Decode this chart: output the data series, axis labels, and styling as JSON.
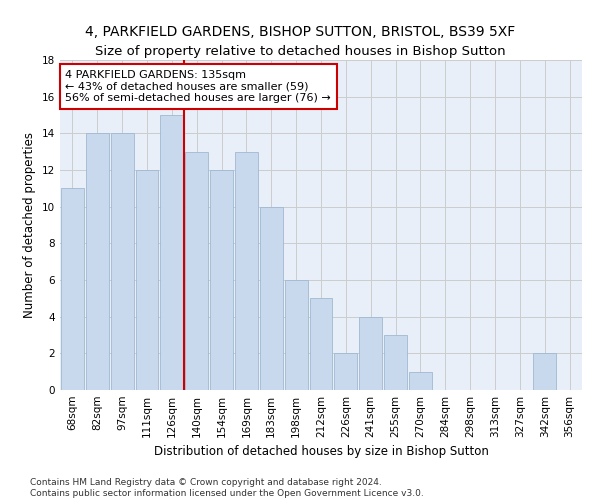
{
  "title": "4, PARKFIELD GARDENS, BISHOP SUTTON, BRISTOL, BS39 5XF",
  "subtitle": "Size of property relative to detached houses in Bishop Sutton",
  "xlabel": "Distribution of detached houses by size in Bishop Sutton",
  "ylabel": "Number of detached properties",
  "categories": [
    "68sqm",
    "82sqm",
    "97sqm",
    "111sqm",
    "126sqm",
    "140sqm",
    "154sqm",
    "169sqm",
    "183sqm",
    "198sqm",
    "212sqm",
    "226sqm",
    "241sqm",
    "255sqm",
    "270sqm",
    "284sqm",
    "298sqm",
    "313sqm",
    "327sqm",
    "342sqm",
    "356sqm"
  ],
  "values": [
    11,
    14,
    14,
    12,
    15,
    13,
    12,
    13,
    10,
    6,
    5,
    2,
    4,
    3,
    1,
    0,
    0,
    0,
    0,
    2,
    0
  ],
  "bar_color": "#c8d9ed",
  "bar_edge_color": "#a0b8d0",
  "ref_line_x": 4.5,
  "ref_line_label": "4 PARKFIELD GARDENS: 135sqm",
  "annotation_line1": "← 43% of detached houses are smaller (59)",
  "annotation_line2": "56% of semi-detached houses are larger (76) →",
  "annotation_box_color": "#ffffff",
  "annotation_box_edge": "#cc0000",
  "ref_line_color": "#cc0000",
  "ylim": [
    0,
    18
  ],
  "yticks": [
    0,
    2,
    4,
    6,
    8,
    10,
    12,
    14,
    16,
    18
  ],
  "grid_color": "#cccccc",
  "bg_color": "#e8eff8",
  "footnote": "Contains HM Land Registry data © Crown copyright and database right 2024.\nContains public sector information licensed under the Open Government Licence v3.0.",
  "title_fontsize": 10,
  "axis_label_fontsize": 8.5,
  "tick_fontsize": 7.5,
  "annotation_fontsize": 8,
  "footnote_fontsize": 6.5
}
